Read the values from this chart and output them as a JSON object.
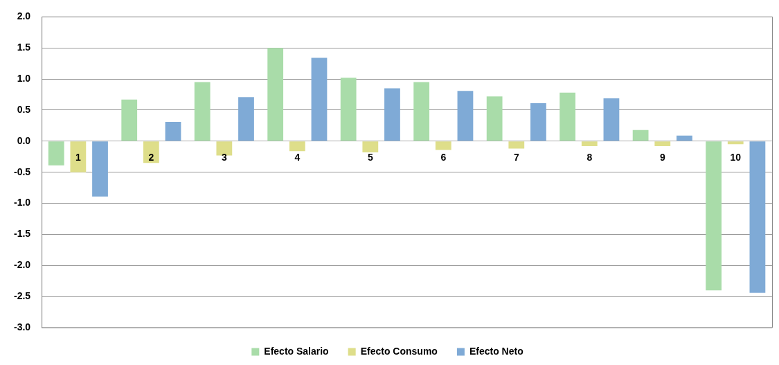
{
  "chart_data": {
    "type": "bar",
    "categories": [
      "1",
      "2",
      "3",
      "4",
      "5",
      "6",
      "7",
      "8",
      "9",
      "10"
    ],
    "series": [
      {
        "name": "Efecto Salario",
        "color": "#a9dca9",
        "values": [
          -0.39,
          0.67,
          0.95,
          1.5,
          1.02,
          0.95,
          0.72,
          0.78,
          0.18,
          -2.4
        ]
      },
      {
        "name": "Efecto Consumo",
        "color": "#dede8a",
        "values": [
          -0.5,
          -0.35,
          -0.23,
          -0.16,
          -0.18,
          -0.14,
          -0.12,
          -0.08,
          -0.08,
          -0.05
        ]
      },
      {
        "name": "Efecto Neto",
        "color": "#7faad6",
        "values": [
          -0.89,
          0.31,
          0.71,
          1.34,
          0.85,
          0.81,
          0.61,
          0.69,
          0.09,
          -2.44
        ]
      }
    ],
    "ylim": [
      -3,
      2
    ],
    "yticks": [
      {
        "value": -3,
        "label": "-3.0"
      },
      {
        "value": -2.5,
        "label": "-2.5"
      },
      {
        "value": -2,
        "label": "-2.0"
      },
      {
        "value": -1.5,
        "label": "-1.5"
      },
      {
        "value": -1,
        "label": "-1.0"
      },
      {
        "value": -0.5,
        "label": "-0.5"
      },
      {
        "value": 0,
        "label": "0.0"
      },
      {
        "value": 0.5,
        "label": "0.5"
      },
      {
        "value": 1,
        "label": "1.0"
      },
      {
        "value": 1.5,
        "label": "1.5"
      },
      {
        "value": 2,
        "label": "2.0"
      }
    ],
    "grid": "y",
    "legend": "bottom"
  }
}
